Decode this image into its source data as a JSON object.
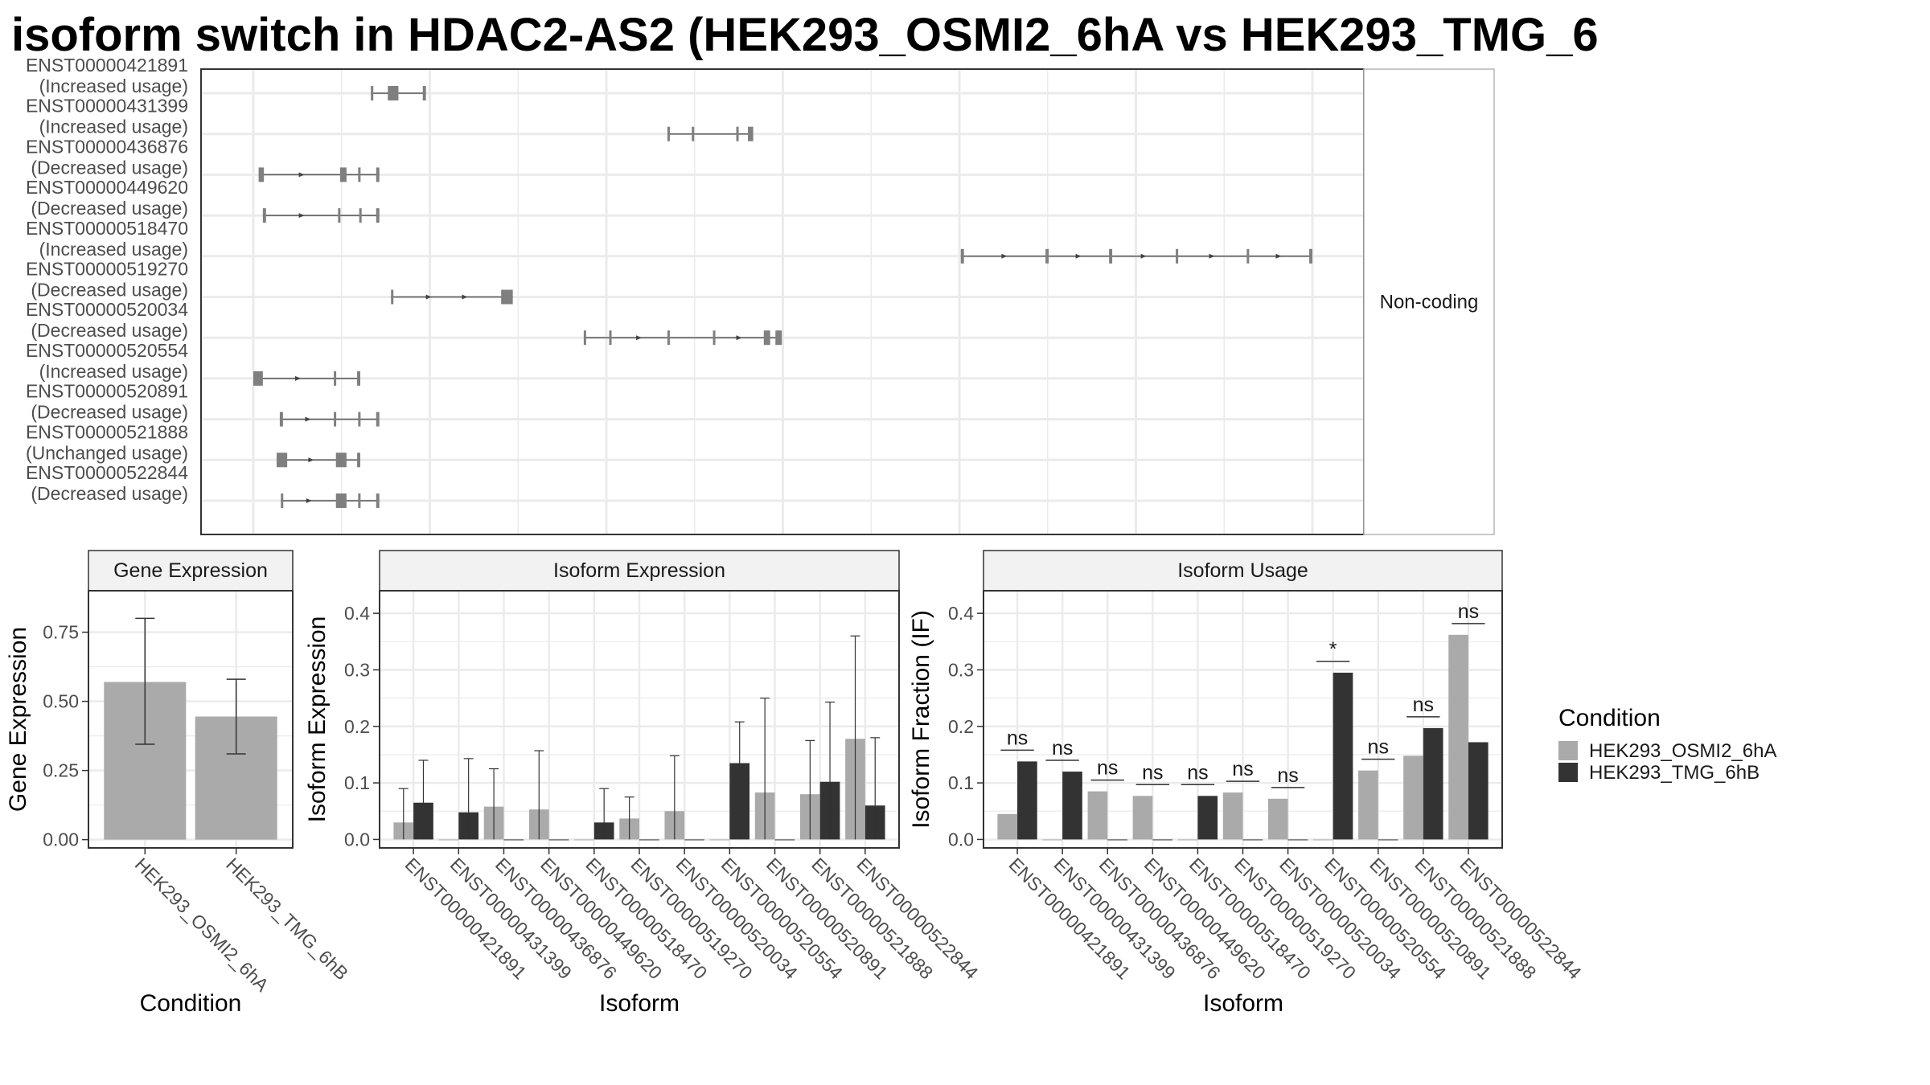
{
  "title": "isoform switch in HDAC2-AS2 (HEK293_OSMI2_6hA vs HEK293_TMG_6",
  "chart_data": [
    {
      "type": "isoform-structure",
      "facet_label": "Non-coding",
      "x_range": [
        0,
        1000
      ],
      "isoforms": [
        {
          "id": "ENST00000421891",
          "usage": "(Increased usage)",
          "exons": [
            [
              111,
              113
            ],
            [
              127,
              137
            ],
            [
              160,
              163
            ]
          ]
        },
        {
          "id": "ENST00000431399",
          "usage": "(Increased usage)",
          "exons": [
            [
              391,
              393
            ],
            [
              414,
              416
            ],
            [
              456,
              458
            ],
            [
              467,
              472
            ]
          ]
        },
        {
          "id": "ENST00000436876",
          "usage": "(Decreased usage)",
          "exons": [
            [
              5,
              10
            ],
            [
              82,
              88
            ],
            [
              99,
              101
            ],
            [
              116,
              119
            ]
          ]
        },
        {
          "id": "ENST00000449620",
          "usage": "(Decreased usage)",
          "exons": [
            [
              9,
              12
            ],
            [
              80,
              82
            ],
            [
              100,
              102
            ],
            [
              116,
              119
            ]
          ]
        },
        {
          "id": "ENST00000518470",
          "usage": "(Increased usage)",
          "exons": [
            [
              668,
              671
            ],
            [
              748,
              751
            ],
            [
              808,
              811
            ],
            [
              871,
              873
            ],
            [
              938,
              940
            ],
            [
              997,
              1000
            ]
          ]
        },
        {
          "id": "ENST00000519270",
          "usage": "(Decreased usage)",
          "exons": [
            [
              130,
              132
            ],
            [
              234,
              245
            ]
          ]
        },
        {
          "id": "ENST00000520034",
          "usage": "(Decreased usage)",
          "exons": [
            [
              312,
              314
            ],
            [
              336,
              338
            ],
            [
              391,
              393
            ],
            [
              434,
              436
            ],
            [
              482,
              488
            ],
            [
              493,
              499
            ]
          ]
        },
        {
          "id": "ENST00000520554",
          "usage": "(Increased usage)",
          "exons": [
            [
              0,
              9
            ],
            [
              76,
              78
            ],
            [
              98,
              101
            ]
          ]
        },
        {
          "id": "ENST00000520891",
          "usage": "(Decreased usage)",
          "exons": [
            [
              25,
              28
            ],
            [
              76,
              78
            ],
            [
              99,
              101
            ],
            [
              116,
              119
            ]
          ]
        },
        {
          "id": "ENST00000521888",
          "usage": "(Unchanged usage)",
          "exons": [
            [
              22,
              32
            ],
            [
              78,
              88
            ],
            [
              98,
              101
            ]
          ]
        },
        {
          "id": "ENST00000522844",
          "usage": "(Decreased usage)",
          "exons": [
            [
              26,
              28
            ],
            [
              78,
              88
            ],
            [
              99,
              101
            ],
            [
              116,
              119
            ]
          ]
        }
      ]
    },
    {
      "type": "bar",
      "facet_label": "Gene Expression",
      "xlabel": "Condition",
      "ylabel": "Gene Expression",
      "ylim": [
        -0.03,
        0.9
      ],
      "yticks": [
        "0.00",
        "0.25",
        "0.50",
        "0.75"
      ],
      "categories": [
        "HEK293_OSMI2_6hA",
        "HEK293_TMG_6hB"
      ],
      "values": [
        0.57,
        0.445
      ],
      "error": [
        [
          0.345,
          0.8
        ],
        [
          0.31,
          0.58
        ]
      ],
      "grid": true
    },
    {
      "type": "bar",
      "facet_label": "Isoform Expression",
      "xlabel": "Isoform",
      "ylabel": "Isoform Expression",
      "ylim": [
        -0.015,
        0.44
      ],
      "yticks": [
        "0.0",
        "0.1",
        "0.2",
        "0.3",
        "0.4"
      ],
      "categories": [
        "ENST00000421891",
        "ENST00000431399",
        "ENST00000436876",
        "ENST00000449620",
        "ENST00000518470",
        "ENST00000519270",
        "ENST00000520034",
        "ENST00000520554",
        "ENST00000520891",
        "ENST00000521888",
        "ENST00000522844"
      ],
      "series": [
        {
          "values": [
            0.03,
            0.0,
            0.058,
            0.053,
            0.0,
            0.037,
            0.05,
            0.0,
            0.083,
            0.08,
            0.178
          ]
        },
        {
          "values": [
            0.065,
            0.048,
            0.0,
            0.0,
            0.03,
            0.0,
            0.0,
            0.135,
            0.0,
            0.102,
            0.06
          ]
        }
      ],
      "error_high": [
        [
          0.09,
          0.0,
          0.125,
          0.157,
          0.0,
          0.075,
          0.148,
          0.0,
          0.25,
          0.175,
          0.36
        ],
        [
          0.14,
          0.143,
          0.0,
          0.0,
          0.09,
          0.0,
          0.0,
          0.208,
          0.0,
          0.243,
          0.18
        ]
      ],
      "grid": true
    },
    {
      "type": "bar",
      "facet_label": "Isoform Usage",
      "xlabel": "Isoform",
      "ylabel": "Isoform Fraction (IF)",
      "ylim": [
        -0.015,
        0.44
      ],
      "yticks": [
        "0.0",
        "0.1",
        "0.2",
        "0.3",
        "0.4"
      ],
      "categories": [
        "ENST00000421891",
        "ENST00000431399",
        "ENST00000436876",
        "ENST00000449620",
        "ENST00000518470",
        "ENST00000519270",
        "ENST00000520034",
        "ENST00000520554",
        "ENST00000520891",
        "ENST00000521888",
        "ENST00000522844"
      ],
      "series": [
        {
          "values": [
            0.045,
            0.0,
            0.085,
            0.077,
            0.0,
            0.083,
            0.072,
            0.0,
            0.122,
            0.148,
            0.362
          ]
        },
        {
          "values": [
            0.138,
            0.12,
            0.0,
            0.0,
            0.077,
            0.0,
            0.0,
            0.295,
            0.0,
            0.197,
            0.172
          ]
        }
      ],
      "significance": [
        "ns",
        "ns",
        "ns",
        "ns",
        "ns",
        "ns",
        "ns",
        "*",
        "ns",
        "ns",
        "ns"
      ],
      "grid": true
    }
  ],
  "legend": {
    "title": "Condition",
    "placement": "right",
    "entries": [
      {
        "label": "HEK293_OSMI2_6hA",
        "color": "#aaaaaa"
      },
      {
        "label": "HEK293_TMG_6hB",
        "color": "#333333"
      }
    ]
  },
  "colors": {
    "light": "#aaaaaa",
    "dark": "#333333",
    "exon": "#7f7f7f",
    "grid": "#ebebeb",
    "strip": "#f2f2f2",
    "frame": "#333333"
  }
}
